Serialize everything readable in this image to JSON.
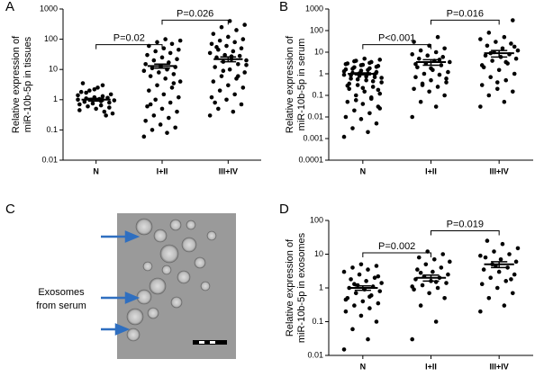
{
  "chart_data": [
    {
      "type": "dotplot",
      "panel": "A",
      "y_label": [
        "Relative expression of",
        "miR-10b-5p in tissues"
      ],
      "categories": [
        "N",
        "I+II",
        "III+IV"
      ],
      "log_scale": true,
      "ylim": [
        0.01,
        1000
      ],
      "yticks": [
        0.01,
        0.1,
        1,
        10,
        100,
        1000
      ],
      "color": "#000000",
      "groups": [
        {
          "values": [
            1,
            0.9,
            1.1,
            0.8,
            1.2,
            0.7,
            1.3,
            0.6,
            1.5,
            0.5,
            1.8,
            0.4,
            2,
            0.35,
            2.5,
            3.5,
            0.3,
            1,
            0.95,
            1.05,
            0.85,
            1.15,
            0.75,
            1.4,
            0.65,
            1.7,
            0.55,
            2.2,
            0.45,
            3
          ],
          "mean": 1,
          "error": 0.1
        },
        {
          "values": [
            0.06,
            0.08,
            0.1,
            0.12,
            0.15,
            0.2,
            0.25,
            0.3,
            0.4,
            0.5,
            0.6,
            0.8,
            1,
            1.2,
            1.5,
            2,
            2.5,
            3,
            4,
            5,
            6,
            7,
            8,
            9,
            10,
            11,
            12,
            13,
            15,
            17,
            20,
            22,
            25,
            30,
            35,
            40,
            45,
            50,
            60,
            70,
            80,
            90,
            100,
            0.7,
            3.5
          ],
          "mean": 13,
          "error": 2
        },
        {
          "values": [
            0.3,
            0.4,
            0.5,
            0.7,
            1,
            1.2,
            1.5,
            2,
            2.5,
            3,
            4,
            5,
            6,
            8,
            10,
            12,
            15,
            18,
            20,
            22,
            25,
            28,
            30,
            35,
            40,
            45,
            50,
            60,
            70,
            80,
            90,
            100,
            120,
            150,
            200,
            250,
            300,
            400,
            0.8,
            6,
            9,
            14,
            27,
            55
          ],
          "mean": 22,
          "error": 4
        }
      ],
      "comparisons": [
        {
          "from": "N",
          "to": "I+II",
          "label": "P=0.02"
        },
        {
          "from": "I+II",
          "to": "III+IV",
          "label": "P=0.026"
        }
      ]
    },
    {
      "type": "dotplot",
      "panel": "B",
      "y_label": [
        "Relative expression of",
        "miR-10b-5p in serum"
      ],
      "categories": [
        "N",
        "I+II",
        "III+IV"
      ],
      "log_scale": true,
      "ylim": [
        0.0001,
        1000
      ],
      "yticks": [
        0.0001,
        0.001,
        0.01,
        0.1,
        1,
        10,
        100,
        1000
      ],
      "color": "#000000",
      "groups": [
        {
          "values": [
            0.0012,
            0.002,
            0.003,
            0.005,
            0.008,
            0.01,
            0.015,
            0.02,
            0.03,
            0.04,
            0.05,
            0.07,
            0.1,
            0.12,
            0.15,
            0.2,
            0.25,
            0.3,
            0.4,
            0.5,
            0.6,
            0.7,
            0.8,
            0.9,
            1,
            1.1,
            1.2,
            1.4,
            1.6,
            1.8,
            2,
            2.3,
            2.6,
            3,
            3.5,
            4,
            4.5,
            5,
            0.35,
            0.45,
            0.55,
            0.65,
            0.75,
            0.85,
            0.95,
            1.05,
            1.3,
            1.5,
            1.7,
            2.1,
            2.5,
            2.8,
            3.2,
            3.8,
            0.18,
            0.22,
            0.28,
            0.08,
            0.06,
            0.025
          ],
          "mean": 1,
          "error": 0.1
        },
        {
          "values": [
            0.01,
            0.03,
            0.05,
            0.1,
            0.15,
            0.2,
            0.25,
            0.3,
            0.4,
            0.5,
            0.7,
            0.9,
            1,
            1.2,
            1.5,
            2,
            2.5,
            3,
            3.5,
            4,
            5,
            6,
            7,
            8,
            10,
            12,
            15,
            20,
            30,
            50,
            0.35,
            0.6,
            1.8,
            2.8,
            4.5
          ],
          "mean": 3.5,
          "error": 1
        },
        {
          "values": [
            0.03,
            0.05,
            0.1,
            0.15,
            0.2,
            0.3,
            0.5,
            0.7,
            1,
            1.5,
            2,
            3,
            4,
            5,
            6,
            7,
            8,
            10,
            12,
            15,
            20,
            25,
            30,
            40,
            50,
            80,
            300,
            0.4,
            2.5,
            3.5,
            9,
            18
          ],
          "mean": 9,
          "error": 3
        }
      ],
      "comparisons": [
        {
          "from": "N",
          "to": "I+II",
          "label": "P<0.001"
        },
        {
          "from": "I+II",
          "to": "III+IV",
          "label": "P=0.016"
        }
      ]
    },
    {
      "type": "dotplot",
      "panel": "D",
      "y_label": [
        "Relative expression of",
        "miR-10b-5p in exosomes"
      ],
      "categories": [
        "N",
        "I+II",
        "III+IV"
      ],
      "log_scale": true,
      "ylim": [
        0.01,
        100
      ],
      "yticks": [
        0.01,
        0.1,
        1,
        10,
        100
      ],
      "color": "#000000",
      "groups": [
        {
          "values": [
            0.015,
            0.03,
            0.06,
            0.1,
            0.15,
            0.2,
            0.25,
            0.3,
            0.35,
            0.4,
            0.5,
            0.6,
            0.7,
            0.8,
            0.9,
            1,
            1.1,
            1.2,
            1.4,
            1.6,
            1.8,
            2,
            2.5,
            3,
            3.5,
            4,
            4.5,
            5,
            0.45,
            0.55,
            1.3,
            2.2
          ],
          "mean": 1,
          "error": 0.15
        },
        {
          "values": [
            0.03,
            0.1,
            0.3,
            0.5,
            0.7,
            0.9,
            1,
            1.2,
            1.4,
            1.6,
            1.8,
            2,
            2.2,
            2.5,
            3,
            3.5,
            4,
            5,
            6,
            7,
            8,
            10,
            12,
            1.1,
            1.5,
            2.8
          ],
          "mean": 2,
          "error": 0.4
        },
        {
          "values": [
            0.2,
            0.3,
            0.5,
            0.7,
            1,
            1.3,
            1.6,
            2,
            2.5,
            3,
            3.5,
            4,
            5,
            6,
            7,
            8,
            10,
            12,
            15,
            20,
            25,
            1.8,
            4.5,
            9
          ],
          "mean": 5,
          "error": 1
        }
      ],
      "comparisons": [
        {
          "from": "N",
          "to": "I+II",
          "label": "P=0.002"
        },
        {
          "from": "I+II",
          "to": "III+IV",
          "label": "P=0.019"
        }
      ]
    }
  ],
  "image_panel": {
    "panel": "C",
    "annotation": [
      "Exosomes",
      "from serum"
    ]
  }
}
